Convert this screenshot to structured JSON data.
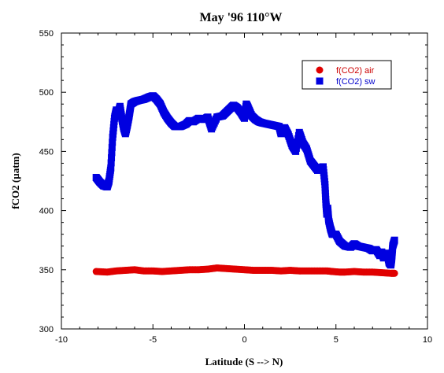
{
  "chart_data": {
    "type": "scatter",
    "title": "May '96 110°W",
    "xlabel": "Latitude (S --> N)",
    "ylabel": "fCO2 (µatm)",
    "xlim": [
      -10,
      10
    ],
    "ylim": [
      300,
      550
    ],
    "xticks": [
      -10,
      -5,
      0,
      5,
      10
    ],
    "yticks": [
      300,
      350,
      400,
      450,
      500,
      550
    ],
    "legend_position": "top-right",
    "series": [
      {
        "name": "f(CO2) air",
        "color": "#e00000",
        "marker": "circle",
        "x": [
          -8.1,
          -7.5,
          -7.0,
          -6.5,
          -6.0,
          -5.5,
          -5.0,
          -4.5,
          -4.0,
          -3.5,
          -3.0,
          -2.5,
          -2.0,
          -1.5,
          -1.0,
          -0.5,
          0.0,
          0.5,
          1.0,
          1.5,
          2.0,
          2.5,
          3.0,
          3.5,
          4.0,
          4.5,
          4.8,
          5.2,
          5.5,
          6.0,
          6.5,
          7.0,
          7.5,
          8.0,
          8.2
        ],
        "y": [
          348.5,
          348,
          349,
          349.5,
          350,
          349,
          349,
          348.5,
          349,
          349.5,
          350,
          350,
          350.5,
          351.5,
          351,
          350.5,
          350,
          349.5,
          349.5,
          349.5,
          349,
          349.5,
          349,
          349,
          349,
          349,
          348.5,
          348,
          348,
          348.5,
          348,
          348,
          347.5,
          347,
          347
        ]
      },
      {
        "name": "f(CO2) sw",
        "color": "#0000e0",
        "marker": "square",
        "x": [
          -8.1,
          -7.9,
          -7.7,
          -7.5,
          -7.4,
          -7.3,
          -7.2,
          -7.1,
          -7.0,
          -6.9,
          -6.8,
          -6.7,
          -6.6,
          -6.5,
          -6.4,
          -6.3,
          -6.2,
          -6.0,
          -5.8,
          -5.5,
          -5.2,
          -5.0,
          -4.8,
          -4.6,
          -4.4,
          -4.2,
          -4.0,
          -3.8,
          -3.5,
          -3.2,
          -3.0,
          -2.8,
          -2.5,
          -2.2,
          -2.0,
          -1.8,
          -1.5,
          -1.2,
          -1.0,
          -0.8,
          -0.6,
          -0.4,
          -0.2,
          0.0,
          0.1,
          0.2,
          0.4,
          0.6,
          0.8,
          1.0,
          1.3,
          1.6,
          1.9,
          2.0,
          2.2,
          2.4,
          2.6,
          2.8,
          3.0,
          3.2,
          3.4,
          3.6,
          3.8,
          4.0,
          4.2,
          4.3,
          4.4,
          4.45,
          4.5,
          4.55,
          4.6,
          4.7,
          4.8,
          5.0,
          5.2,
          5.5,
          5.8,
          6.0,
          6.2,
          6.5,
          6.8,
          7.0,
          7.2,
          7.4,
          7.5,
          7.6,
          7.8,
          7.9,
          8.0,
          8.05,
          8.1,
          8.2
        ],
        "y": [
          428,
          424,
          421,
          420,
          425,
          436,
          462,
          478,
          485,
          482,
          488,
          478,
          470,
          465,
          472,
          480,
          490,
          492,
          493,
          494,
          496,
          497,
          494,
          490,
          483,
          478,
          474,
          471,
          471,
          473,
          476,
          475,
          478,
          477,
          479,
          469,
          479,
          480,
          483,
          486,
          489,
          487,
          483,
          478,
          490,
          487,
          480,
          477,
          475,
          474,
          473,
          472,
          471,
          465,
          470,
          464,
          455,
          450,
          466,
          457,
          452,
          442,
          438,
          434,
          436,
          437,
          422,
          407,
          397,
          402,
          392,
          385,
          380,
          380,
          374,
          370,
          369,
          372,
          370,
          369,
          368,
          366,
          367,
          362,
          365,
          360,
          364,
          356,
          354,
          360,
          370,
          375
        ]
      }
    ]
  }
}
